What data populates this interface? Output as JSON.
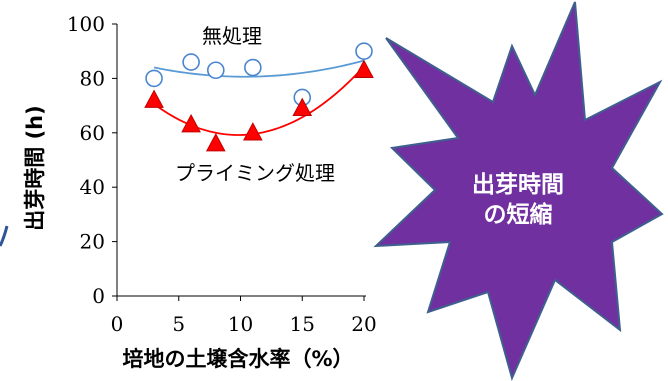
{
  "chart_data": {
    "type": "scatter",
    "title": "",
    "xlabel": "培地の土壌含水率（%）",
    "ylabel": "出芽時間 (h)",
    "xlim": [
      0,
      20
    ],
    "ylim": [
      0,
      100
    ],
    "x_ticks": [
      "0",
      "5",
      "10",
      "15",
      "20"
    ],
    "y_ticks": [
      "0",
      "20",
      "40",
      "60",
      "80",
      "100"
    ],
    "grid": false,
    "series": [
      {
        "name": "無処理",
        "marker": "circle-open",
        "color": "#4a86d0",
        "points": [
          [
            3,
            80
          ],
          [
            6,
            86
          ],
          [
            8,
            83
          ],
          [
            11,
            84
          ],
          [
            15,
            73
          ],
          [
            20,
            90
          ]
        ],
        "trend": "quadratic",
        "trend_color": "#5b9bd5"
      },
      {
        "name": "プライミング処理",
        "marker": "triangle-filled",
        "color": "#ff0000",
        "points": [
          [
            3,
            72
          ],
          [
            6,
            63
          ],
          [
            8,
            56
          ],
          [
            11,
            60
          ],
          [
            15,
            69
          ],
          [
            20,
            83
          ]
        ],
        "trend": "quadratic",
        "trend_color": "#ff0000"
      }
    ]
  },
  "callout": {
    "line1": "出芽時間",
    "line2": "の短縮",
    "fill": "#7030a0",
    "stroke": "#3f5f8f"
  }
}
